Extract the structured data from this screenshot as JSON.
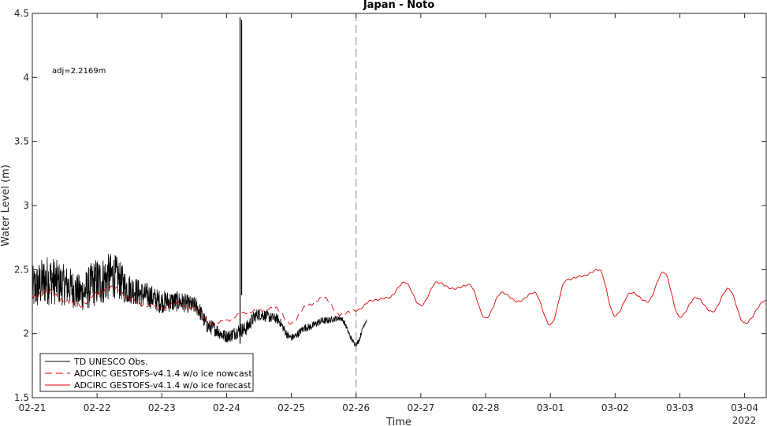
{
  "chart_data": {
    "type": "line",
    "title": "Japan - Noto",
    "xlabel": "Time",
    "ylabel": "Water Level (m)",
    "x_range": [
      "2022-02-21T00:00",
      "2022-03-04T08:00"
    ],
    "ylim": [
      1.5,
      4.5
    ],
    "y_ticks": [
      "1.5",
      "2",
      "2.5",
      "3",
      "3.5",
      "4",
      "4.5"
    ],
    "x_ticks": [
      "02-21",
      "02-22",
      "02-23",
      "02-24",
      "02-25",
      "02-26",
      "02-27",
      "02-28",
      "03-01",
      "03-02",
      "03-03",
      "03-04"
    ],
    "x_tick_dates": [
      "2022-02-21",
      "2022-02-22",
      "2022-02-23",
      "2022-02-24",
      "2022-02-25",
      "2022-02-26",
      "2022-02-27",
      "2022-02-28",
      "2022-03-01",
      "2022-03-02",
      "2022-03-03",
      "2022-03-04"
    ],
    "year_label": "2022",
    "annotation": "adj=2.2169m",
    "nowcast_end": "2022-02-26T00:00",
    "legend_position": "bottom-left",
    "grid": false,
    "series": [
      {
        "name": "TD UNESCO Obs.",
        "color": "#000000",
        "style": "solid",
        "x": [
          "2022-02-21T00:00",
          "2022-02-21T06:00",
          "2022-02-21T12:00",
          "2022-02-21T18:00",
          "2022-02-22T00:00",
          "2022-02-22T06:00",
          "2022-02-22T12:00",
          "2022-02-22T18:00",
          "2022-02-23T00:00",
          "2022-02-23T06:00",
          "2022-02-23T12:00",
          "2022-02-23T18:00",
          "2022-02-24T00:00",
          "2022-02-24T06:00",
          "2022-02-24T12:00",
          "2022-02-24T18:00",
          "2022-02-25T00:00",
          "2022-02-25T06:00",
          "2022-02-25T12:00",
          "2022-02-25T18:00",
          "2022-02-26T00:00",
          "2022-02-26T04:00"
        ],
        "y": [
          2.35,
          2.42,
          2.38,
          2.32,
          2.4,
          2.45,
          2.35,
          2.3,
          2.25,
          2.25,
          2.22,
          2.05,
          1.98,
          2.03,
          2.15,
          2.12,
          1.97,
          2.05,
          2.1,
          2.12,
          1.92,
          2.1
        ],
        "noise": [
          0.18,
          0.2,
          0.16,
          0.14,
          0.2,
          0.18,
          0.12,
          0.1,
          0.09,
          0.08,
          0.07,
          0.06,
          0.05,
          0.06,
          0.05,
          0.04,
          0.03,
          0.03,
          0.03,
          0.02,
          0.02,
          0.02
        ]
      },
      {
        "name": "ADCIRC GESTOFS-v4.1.4 w/o ice nowcast",
        "color": "#e00000",
        "style": "dashed",
        "x": [
          "2022-02-21T00:00",
          "2022-02-21T06:00",
          "2022-02-21T12:00",
          "2022-02-21T18:00",
          "2022-02-22T00:00",
          "2022-02-22T06:00",
          "2022-02-22T12:00",
          "2022-02-22T18:00",
          "2022-02-23T00:00",
          "2022-02-23T06:00",
          "2022-02-23T12:00",
          "2022-02-23T18:00",
          "2022-02-24T00:00",
          "2022-02-24T06:00",
          "2022-02-24T12:00",
          "2022-02-24T18:00",
          "2022-02-25T00:00",
          "2022-02-25T06:00",
          "2022-02-25T12:00",
          "2022-02-25T18:00",
          "2022-02-26T00:00"
        ],
        "y": [
          2.28,
          2.33,
          2.25,
          2.22,
          2.32,
          2.36,
          2.27,
          2.22,
          2.2,
          2.24,
          2.2,
          2.08,
          2.1,
          2.16,
          2.18,
          2.2,
          2.08,
          2.22,
          2.28,
          2.15,
          2.18
        ],
        "noise": [
          0.06,
          0.06,
          0.05,
          0.05,
          0.05,
          0.05,
          0.05,
          0.04,
          0.04,
          0.04,
          0.04,
          0.03,
          0.03,
          0.03,
          0.03,
          0.03,
          0.03,
          0.03,
          0.03,
          0.03,
          0.03
        ]
      },
      {
        "name": "ADCIRC GESTOFS-v4.1.4 w/o ice forecast",
        "color": "#e00000",
        "style": "solid",
        "x": [
          "2022-02-26T00:00",
          "2022-02-26T06:00",
          "2022-02-26T12:00",
          "2022-02-26T18:00",
          "2022-02-27T00:00",
          "2022-02-27T06:00",
          "2022-02-27T12:00",
          "2022-02-27T18:00",
          "2022-02-28T00:00",
          "2022-02-28T06:00",
          "2022-02-28T12:00",
          "2022-02-28T18:00",
          "2022-03-01T00:00",
          "2022-03-01T06:00",
          "2022-03-01T12:00",
          "2022-03-01T18:00",
          "2022-03-02T00:00",
          "2022-03-02T06:00",
          "2022-03-02T12:00",
          "2022-03-02T18:00",
          "2022-03-03T00:00",
          "2022-03-03T06:00",
          "2022-03-03T12:00",
          "2022-03-03T18:00",
          "2022-03-04T00:00",
          "2022-03-04T08:00"
        ],
        "y": [
          2.18,
          2.26,
          2.28,
          2.4,
          2.22,
          2.4,
          2.35,
          2.38,
          2.12,
          2.32,
          2.25,
          2.32,
          2.07,
          2.42,
          2.45,
          2.5,
          2.14,
          2.32,
          2.25,
          2.48,
          2.13,
          2.28,
          2.17,
          2.35,
          2.08,
          2.26
        ],
        "noise": [
          0.02,
          0.02,
          0.02,
          0.02,
          0.02,
          0.02,
          0.02,
          0.02,
          0.02,
          0.02,
          0.02,
          0.02,
          0.02,
          0.02,
          0.02,
          0.02,
          0.02,
          0.02,
          0.02,
          0.02,
          0.02,
          0.02,
          0.02,
          0.02,
          0.02,
          0.02
        ]
      }
    ],
    "spike": {
      "x": "2022-02-24T05:00",
      "y_top": 4.47,
      "y_bottom": 1.92
    }
  }
}
